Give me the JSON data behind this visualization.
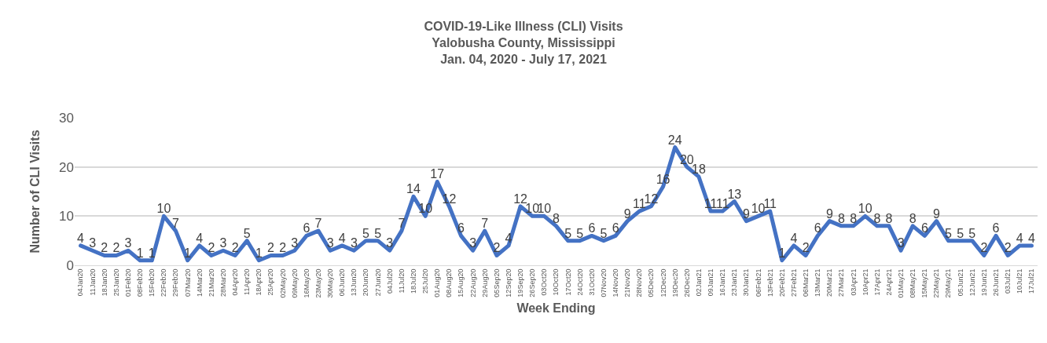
{
  "chart_data": {
    "type": "line",
    "title": "COVID-19-Like Illness (CLI) Visits\nYalobusha County, Mississippi\nJan. 04, 2020 - July 17, 2021",
    "xlabel": "Week Ending",
    "ylabel": "Number of CLI Visits",
    "categories": [
      "04Jan20",
      "11Jan20",
      "18Jan20",
      "25Jan20",
      "01Feb20",
      "08Feb20",
      "15Feb20",
      "22Feb20",
      "29Feb20",
      "07Mar20",
      "14Mar20",
      "21Mar20",
      "28Mar20",
      "04Apr20",
      "11Apr20",
      "18Apr20",
      "25Apr20",
      "02May20",
      "09May20",
      "16May20",
      "23May20",
      "30May20",
      "06Jun20",
      "13Jun20",
      "20Jun20",
      "27Jun20",
      "04Jul20",
      "11Jul20",
      "18Jul20",
      "25Jul20",
      "01Aug20",
      "08Aug20",
      "15Aug20",
      "22Aug20",
      "29Aug20",
      "05Sep20",
      "12Sep20",
      "19Sep20",
      "26Sep20",
      "03Oct20",
      "10Oct20",
      "17Oct20",
      "24Oct20",
      "31Oct20",
      "07Nov20",
      "14Nov20",
      "21Nov20",
      "28Nov20",
      "05Dec20",
      "12Dec20",
      "19Dec20",
      "26Dec20",
      "02Jan21",
      "09Jan21",
      "16Jan21",
      "23Jan21",
      "30Jan21",
      "06Feb21",
      "13Feb21",
      "20Feb21",
      "27Feb21",
      "06Mar21",
      "13Mar21",
      "20Mar21",
      "27Mar21",
      "03Apr21",
      "10Apr21",
      "17Apr21",
      "24Apr21",
      "01May21",
      "08May21",
      "15May21",
      "22May21",
      "29May21",
      "05Jun21",
      "12Jun21",
      "19Jun21",
      "26Jun21",
      "03Jul21",
      "10Jul21",
      "17Jul21"
    ],
    "series": [
      {
        "color": "#4472c4",
        "values": [
          4,
          3,
          2,
          2,
          3,
          1,
          1,
          10,
          7,
          1,
          4,
          2,
          3,
          2,
          5,
          1,
          2,
          2,
          3,
          6,
          7,
          3,
          4,
          3,
          5,
          5,
          3,
          7,
          14,
          10,
          17,
          12,
          6,
          3,
          7,
          2,
          4,
          12,
          10,
          10,
          8,
          5,
          5,
          6,
          5,
          6,
          9,
          11,
          12,
          16,
          24,
          20,
          18,
          11,
          11,
          13,
          9,
          10,
          11,
          1,
          4,
          2,
          6,
          9,
          8,
          8,
          10,
          8,
          8,
          3,
          8,
          6,
          9,
          5,
          5,
          5,
          2,
          6,
          2,
          4,
          4
        ]
      }
    ],
    "ylim": [
      0,
      30
    ],
    "yticks": [
      0,
      10,
      20,
      30
    ],
    "grid": "y",
    "marker": "none",
    "line_style": "solid",
    "data_labels": true
  }
}
